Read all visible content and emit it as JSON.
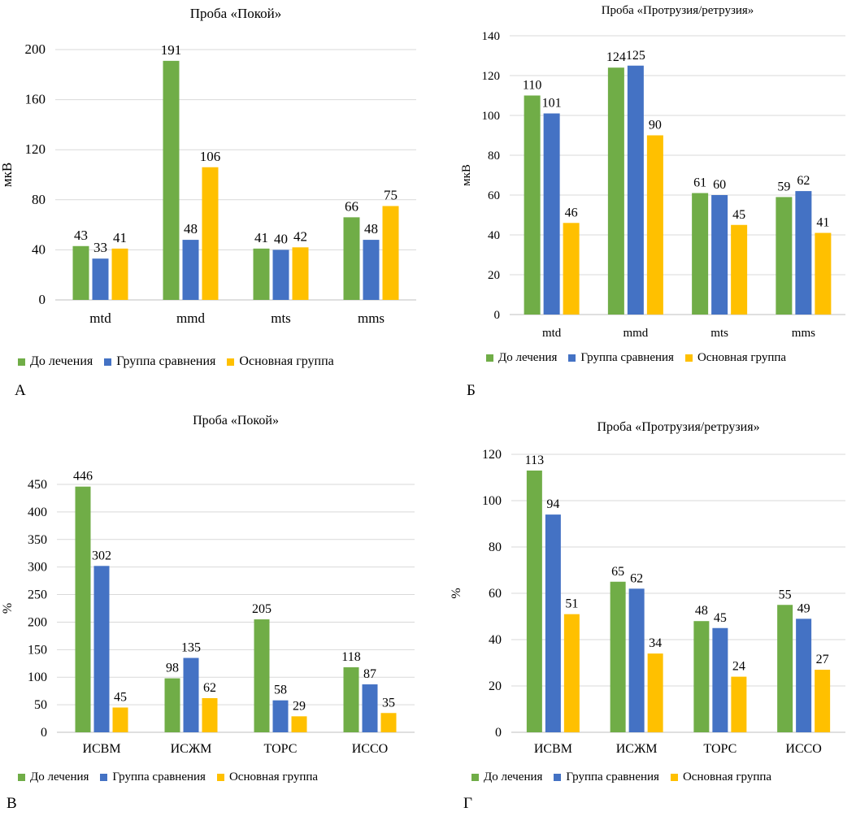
{
  "colors": {
    "series": [
      "#70ad47",
      "#4472c4",
      "#ffc000"
    ],
    "grid": "#d9d9d9"
  },
  "panels": [
    {
      "letter": "А"
    },
    {
      "letter": "Б"
    },
    {
      "letter": "В"
    },
    {
      "letter": "Г"
    }
  ],
  "chart_data": [
    {
      "type": "bar",
      "title": "Проба «Покой»",
      "xlabel": "",
      "ylabel": "мкВ",
      "ylim": [
        0,
        200
      ],
      "yticks": [
        "0",
        "40",
        "80",
        "120",
        "160",
        "200"
      ],
      "grid": true,
      "legend_position": "bottom",
      "categories": [
        "mtd",
        "mmd",
        "mts",
        "mms"
      ],
      "series": [
        {
          "name": "До лечения",
          "values": [
            43,
            191,
            41,
            66
          ]
        },
        {
          "name": "Группа сравнения",
          "values": [
            33,
            48,
            40,
            48
          ]
        },
        {
          "name": "Основная группа",
          "values": [
            41,
            106,
            42,
            75
          ]
        }
      ]
    },
    {
      "type": "bar",
      "title": "Проба «Протрузия/ретрузия»",
      "xlabel": "",
      "ylabel": "мкВ",
      "ylim": [
        0,
        140
      ],
      "yticks": [
        "0",
        "20",
        "40",
        "60",
        "80",
        "100",
        "120",
        "140"
      ],
      "grid": true,
      "legend_position": "bottom",
      "categories": [
        "mtd",
        "mmd",
        "mts",
        "mms"
      ],
      "series": [
        {
          "name": "До лечения",
          "values": [
            110,
            124,
            61,
            59
          ]
        },
        {
          "name": "Группа сравнения",
          "values": [
            101,
            125,
            60,
            62
          ]
        },
        {
          "name": "Основная группа",
          "values": [
            46,
            90,
            45,
            41
          ]
        }
      ]
    },
    {
      "type": "bar",
      "title": "Проба «Покой»",
      "xlabel": "",
      "ylabel": "%",
      "ylim": [
        0,
        450
      ],
      "yticks": [
        "0",
        "50",
        "100",
        "150",
        "200",
        "250",
        "300",
        "350",
        "400",
        "450"
      ],
      "grid": true,
      "legend_position": "bottom",
      "categories": [
        "ИСВМ",
        "ИСЖМ",
        "ТОРС",
        "ИССО"
      ],
      "series": [
        {
          "name": "До лечения",
          "values": [
            446,
            98,
            205,
            118
          ]
        },
        {
          "name": "Группа сравнения",
          "values": [
            302,
            135,
            58,
            87
          ]
        },
        {
          "name": "Основная группа",
          "values": [
            45,
            62,
            29,
            35
          ]
        }
      ]
    },
    {
      "type": "bar",
      "title": "Проба «Протрузия/ретрузия»",
      "xlabel": "",
      "ylabel": "%",
      "ylim": [
        0,
        120
      ],
      "yticks": [
        "0",
        "20",
        "40",
        "60",
        "80",
        "100",
        "120"
      ],
      "grid": true,
      "legend_position": "bottom",
      "categories": [
        "ИСВМ",
        "ИСЖМ",
        "ТОРС",
        "ИССО"
      ],
      "series": [
        {
          "name": "До лечения",
          "values": [
            113,
            65,
            48,
            55
          ]
        },
        {
          "name": "Группа сравнения",
          "values": [
            94,
            62,
            45,
            49
          ]
        },
        {
          "name": "Основная группа",
          "values": [
            51,
            34,
            24,
            27
          ]
        }
      ]
    }
  ]
}
